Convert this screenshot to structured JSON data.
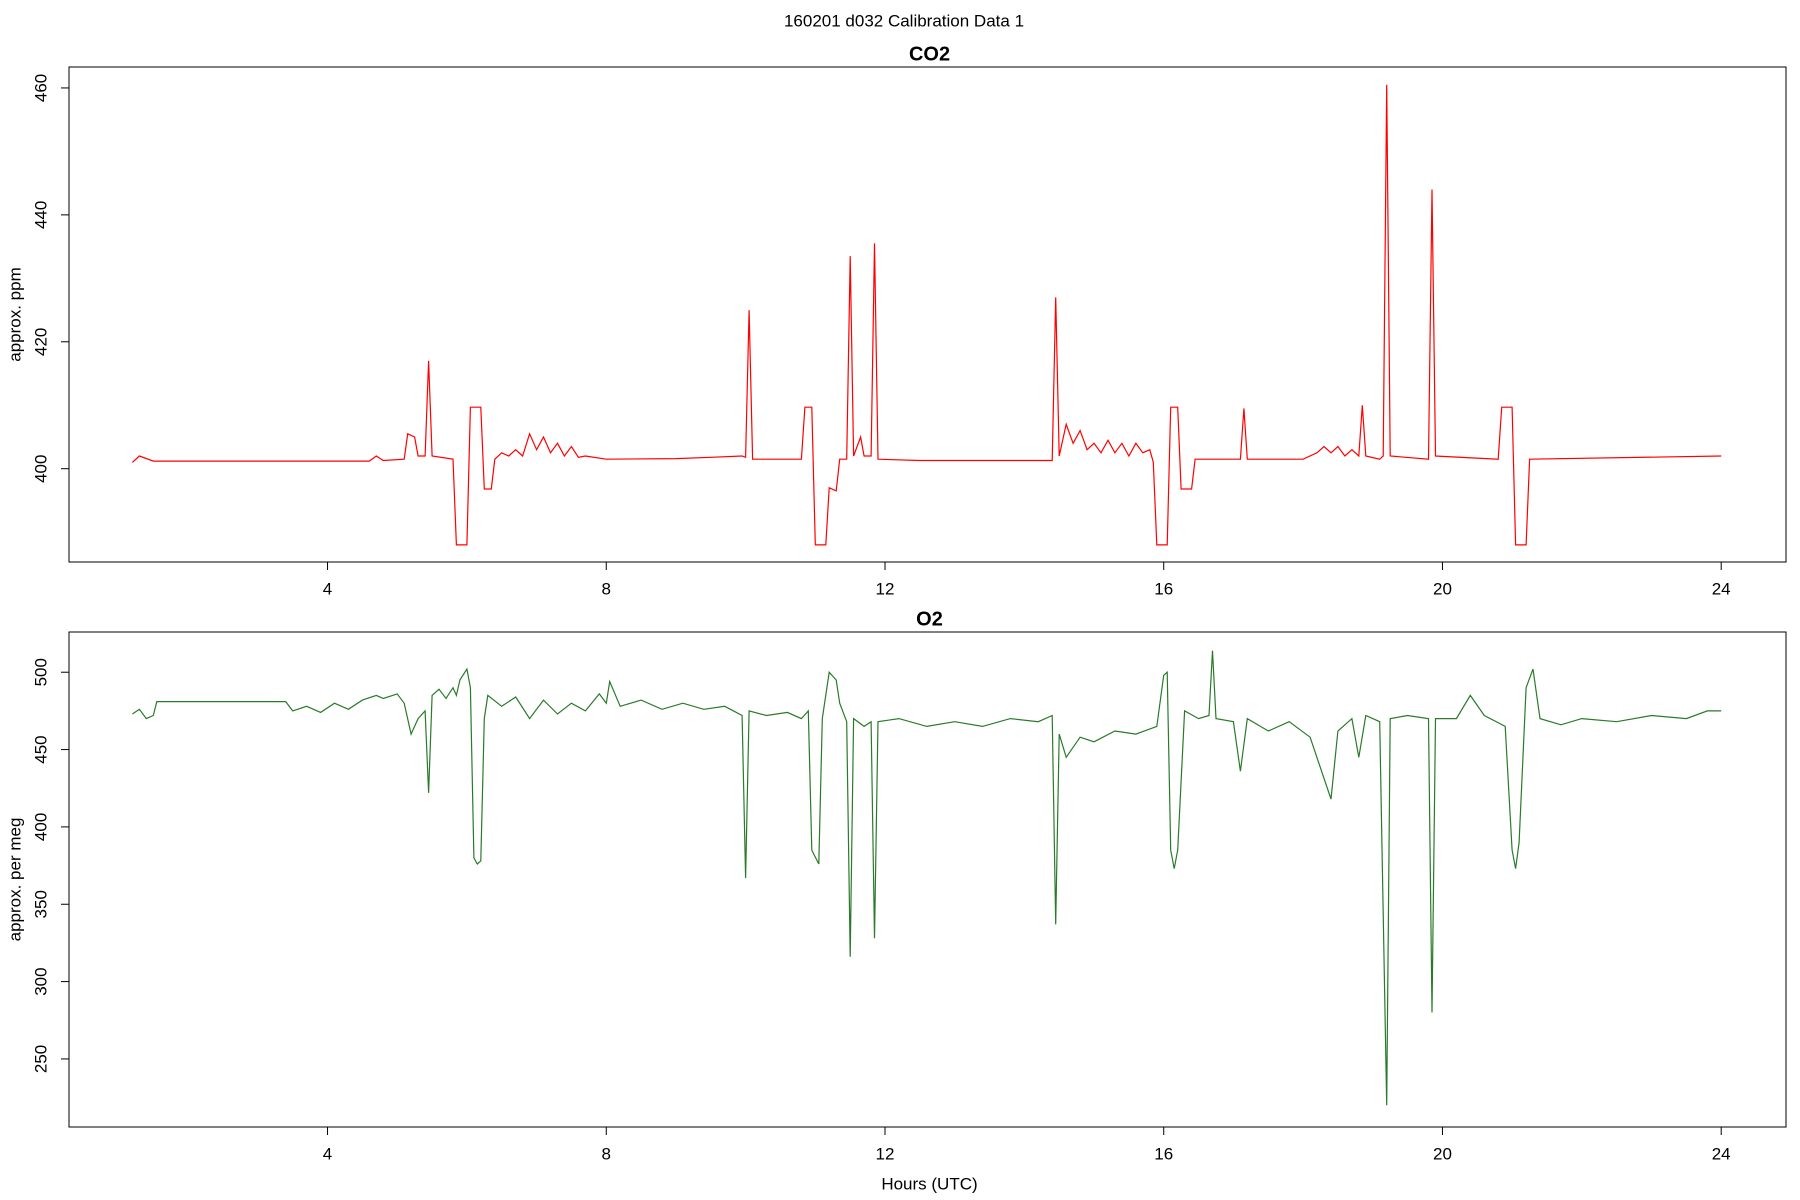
{
  "title": "160201   d032   Calibration Data 1",
  "chart_data": [
    {
      "type": "line",
      "title": "CO2",
      "ylabel": "approx. ppm",
      "xlim": [
        0.29,
        24.93
      ],
      "xticks": [
        4,
        8,
        12,
        16,
        20,
        24
      ],
      "ylim": [
        385.3,
        463.3
      ],
      "yticks": [
        400,
        420,
        440,
        460
      ],
      "series": [
        {
          "name": "CO2",
          "color": "#ff0000",
          "x": [
            1.2,
            1.3,
            1.5,
            3,
            4.6,
            4.7,
            4.8,
            5.1,
            5.15,
            5.25,
            5.3,
            5.4,
            5.45,
            5.5,
            5.8,
            5.85,
            6.0,
            6.05,
            6.2,
            6.25,
            6.35,
            6.4,
            6.5,
            6.6,
            6.7,
            6.8,
            6.9,
            7.0,
            7.1,
            7.2,
            7.3,
            7.4,
            7.5,
            7.6,
            7.7,
            8,
            9,
            9.5,
            9.95,
            10.0,
            10.05,
            10.1,
            10.8,
            10.85,
            10.95,
            11.0,
            11.15,
            11.2,
            11.3,
            11.35,
            11.45,
            11.5,
            11.55,
            11.65,
            11.7,
            11.8,
            11.85,
            11.9,
            12.5,
            14.4,
            14.45,
            14.5,
            14.6,
            14.7,
            14.8,
            14.9,
            15,
            15.1,
            15.2,
            15.3,
            15.4,
            15.5,
            15.6,
            15.7,
            15.8,
            15.85,
            15.9,
            16.05,
            16.1,
            16.2,
            16.25,
            16.4,
            16.45,
            17.1,
            17.15,
            17.2,
            18,
            18.2,
            18.3,
            18.4,
            18.5,
            18.6,
            18.7,
            18.8,
            18.85,
            18.9,
            19.1,
            19.15,
            19.2,
            19.25,
            19.8,
            19.85,
            19.9,
            20.8,
            20.85,
            21.0,
            21.05,
            21.2,
            21.25,
            24
          ],
          "values": [
            401,
            402,
            401.2,
            401.2,
            401.2,
            402,
            401.3,
            401.5,
            405.5,
            405,
            402,
            402,
            417,
            402,
            401.5,
            388,
            388,
            409.7,
            409.7,
            396.8,
            396.8,
            401.5,
            402.5,
            402,
            403,
            402,
            405.5,
            403,
            405,
            402.5,
            404,
            402,
            403.5,
            401.8,
            402,
            401.5,
            401.6,
            401.8,
            402,
            401.8,
            425,
            401.5,
            401.5,
            409.7,
            409.7,
            388,
            388,
            397,
            396.5,
            401.5,
            401.5,
            433.5,
            402,
            405,
            402,
            402,
            435.5,
            401.5,
            401.3,
            401.3,
            427,
            402,
            407,
            404,
            406,
            403,
            404,
            402.5,
            404.5,
            402.5,
            404,
            402,
            404,
            402.5,
            403,
            401,
            388,
            388,
            409.7,
            409.7,
            396.8,
            396.8,
            401.5,
            401.5,
            409.5,
            401.5,
            401.5,
            402.5,
            403.5,
            402.5,
            403.5,
            402,
            403,
            402,
            410,
            402,
            401.5,
            402,
            460.5,
            402,
            401.5,
            444,
            402,
            401.5,
            409.7,
            409.7,
            388,
            388,
            401.5,
            402
          ]
        }
      ]
    },
    {
      "type": "line",
      "title": "O2",
      "ylabel": "approx. per meg",
      "xlabel": "Hours (UTC)",
      "xlim": [
        0.29,
        24.93
      ],
      "xticks": [
        4,
        8,
        12,
        16,
        20,
        24
      ],
      "ylim": [
        206,
        526
      ],
      "yticks": [
        250,
        300,
        350,
        400,
        450,
        500
      ],
      "series": [
        {
          "name": "O2",
          "color": "#2a7a2a",
          "x": [
            1.2,
            1.3,
            1.4,
            1.5,
            1.55,
            3.4,
            3.5,
            3.7,
            3.9,
            4.1,
            4.3,
            4.5,
            4.7,
            4.8,
            5.0,
            5.1,
            5.2,
            5.3,
            5.4,
            5.45,
            5.5,
            5.6,
            5.7,
            5.8,
            5.85,
            5.9,
            6.0,
            6.05,
            6.1,
            6.15,
            6.2,
            6.25,
            6.3,
            6.5,
            6.7,
            6.9,
            7.1,
            7.3,
            7.5,
            7.7,
            7.9,
            8.0,
            8.05,
            8.2,
            8.5,
            8.8,
            9.1,
            9.4,
            9.7,
            9.95,
            10.0,
            10.05,
            10.3,
            10.6,
            10.8,
            10.9,
            10.95,
            11.05,
            11.1,
            11.2,
            11.3,
            11.35,
            11.45,
            11.5,
            11.55,
            11.7,
            11.8,
            11.85,
            11.9,
            12.2,
            12.6,
            13.0,
            13.4,
            13.8,
            14.2,
            14.4,
            14.45,
            14.5,
            14.6,
            14.8,
            15,
            15.3,
            15.6,
            15.9,
            16.0,
            16.05,
            16.1,
            16.15,
            16.2,
            16.3,
            16.5,
            16.65,
            16.7,
            16.75,
            17.0,
            17.1,
            17.2,
            17.5,
            17.8,
            18.1,
            18.4,
            18.5,
            18.7,
            18.8,
            18.9,
            19.1,
            19.2,
            19.25,
            19.5,
            19.8,
            19.85,
            19.9,
            20.2,
            20.4,
            20.6,
            20.9,
            21.0,
            21.05,
            21.1,
            21.2,
            21.3,
            21.4,
            21.7,
            22,
            22.5,
            23,
            23.5,
            23.8,
            24
          ],
          "values": [
            473,
            476,
            470,
            472,
            481,
            481,
            475,
            478,
            474,
            480,
            476,
            482,
            485,
            483,
            486,
            480,
            460,
            470,
            475,
            422,
            485,
            489,
            483,
            490,
            485,
            495,
            502,
            490,
            380,
            376,
            378,
            470,
            485,
            478,
            484,
            470,
            482,
            473,
            480,
            475,
            486,
            480,
            494,
            478,
            482,
            476,
            480,
            476,
            478,
            472,
            367,
            475,
            472,
            474,
            470,
            475,
            385,
            376,
            470,
            500,
            495,
            480,
            468,
            316,
            470,
            465,
            468,
            328,
            468,
            470,
            465,
            468,
            465,
            470,
            468,
            472,
            337,
            460,
            445,
            458,
            455,
            462,
            460,
            465,
            498,
            500,
            385,
            373,
            385,
            475,
            470,
            472,
            514,
            470,
            468,
            436,
            470,
            462,
            468,
            458,
            418,
            462,
            470,
            445,
            472,
            468,
            220,
            470,
            472,
            470,
            280,
            470,
            470,
            485,
            472,
            465,
            385,
            373,
            390,
            490,
            502,
            470,
            466,
            470,
            468,
            472,
            470,
            475,
            475
          ]
        }
      ]
    }
  ]
}
